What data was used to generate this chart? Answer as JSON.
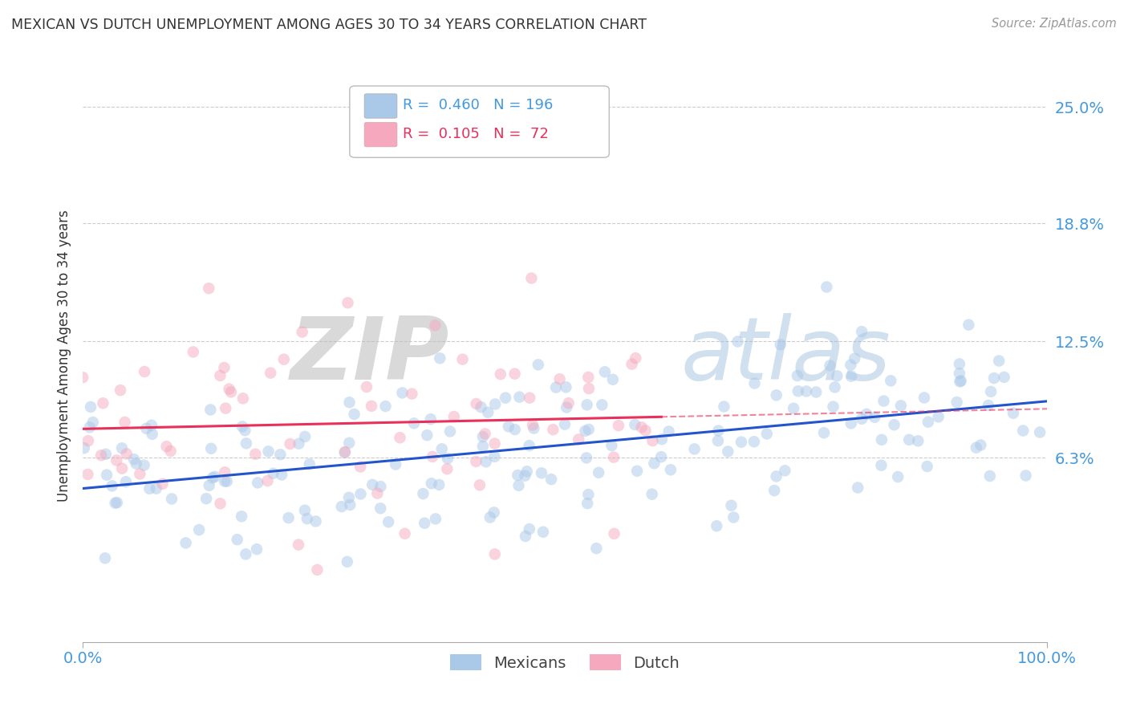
{
  "title": "MEXICAN VS DUTCH UNEMPLOYMENT AMONG AGES 30 TO 34 YEARS CORRELATION CHART",
  "source": "Source: ZipAtlas.com",
  "ylabel": "Unemployment Among Ages 30 to 34 years",
  "xlim": [
    0,
    100
  ],
  "ylim": [
    -3.5,
    27
  ],
  "yticks": [
    6.3,
    12.5,
    18.8,
    25.0
  ],
  "xticks": [
    0,
    100
  ],
  "xtick_labels": [
    "0.0%",
    "100.0%"
  ],
  "ytick_labels": [
    "6.3%",
    "12.5%",
    "18.8%",
    "25.0%"
  ],
  "mexican_color": "#aac8e8",
  "dutch_color": "#f5a8be",
  "mexican_line_color": "#2255cc",
  "dutch_line_color": "#e8305a",
  "mexican_R": 0.46,
  "mexican_N": 196,
  "dutch_R": 0.105,
  "dutch_N": 72,
  "watermark_zip": "ZIP",
  "watermark_atlas": "atlas",
  "background_color": "#ffffff",
  "grid_color": "#cccccc",
  "title_color": "#333333",
  "axis_color": "#4499dd",
  "dot_size": 110,
  "dot_alpha": 0.5
}
